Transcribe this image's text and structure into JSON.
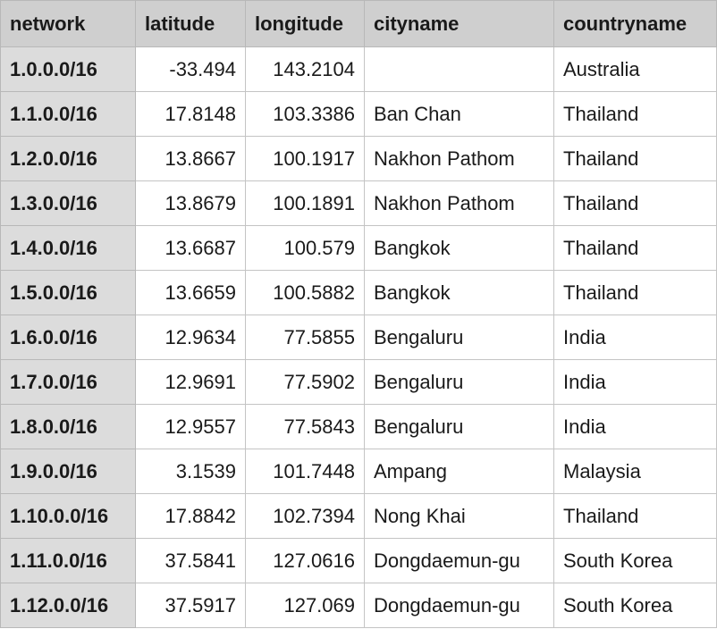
{
  "table": {
    "columns": [
      "network",
      "latitude",
      "longitude",
      "cityname",
      "countryname"
    ],
    "rows": [
      {
        "network": "1.0.0.0/16",
        "latitude": "-33.494",
        "longitude": "143.2104",
        "cityname": "",
        "countryname": "Australia"
      },
      {
        "network": "1.1.0.0/16",
        "latitude": "17.8148",
        "longitude": "103.3386",
        "cityname": "Ban Chan",
        "countryname": "Thailand"
      },
      {
        "network": "1.2.0.0/16",
        "latitude": "13.8667",
        "longitude": "100.1917",
        "cityname": "Nakhon Pathom",
        "countryname": "Thailand"
      },
      {
        "network": "1.3.0.0/16",
        "latitude": "13.8679",
        "longitude": "100.1891",
        "cityname": "Nakhon Pathom",
        "countryname": "Thailand"
      },
      {
        "network": "1.4.0.0/16",
        "latitude": "13.6687",
        "longitude": "100.579",
        "cityname": "Bangkok",
        "countryname": "Thailand"
      },
      {
        "network": "1.5.0.0/16",
        "latitude": "13.6659",
        "longitude": "100.5882",
        "cityname": "Bangkok",
        "countryname": "Thailand"
      },
      {
        "network": "1.6.0.0/16",
        "latitude": "12.9634",
        "longitude": "77.5855",
        "cityname": "Bengaluru",
        "countryname": "India"
      },
      {
        "network": "1.7.0.0/16",
        "latitude": "12.9691",
        "longitude": "77.5902",
        "cityname": "Bengaluru",
        "countryname": "India"
      },
      {
        "network": "1.8.0.0/16",
        "latitude": "12.9557",
        "longitude": "77.5843",
        "cityname": "Bengaluru",
        "countryname": "India"
      },
      {
        "network": "1.9.0.0/16",
        "latitude": "3.1539",
        "longitude": "101.7448",
        "cityname": "Ampang",
        "countryname": "Malaysia"
      },
      {
        "network": "1.10.0.0/16",
        "latitude": "17.8842",
        "longitude": "102.7394",
        "cityname": "Nong Khai",
        "countryname": "Thailand"
      },
      {
        "network": "1.11.0.0/16",
        "latitude": "37.5841",
        "longitude": "127.0616",
        "cityname": "Dongdaemun-gu",
        "countryname": "South Korea"
      },
      {
        "network": "1.12.0.0/16",
        "latitude": "37.5917",
        "longitude": "127.069",
        "cityname": "Dongdaemun-gu",
        "countryname": "South Korea"
      }
    ]
  }
}
